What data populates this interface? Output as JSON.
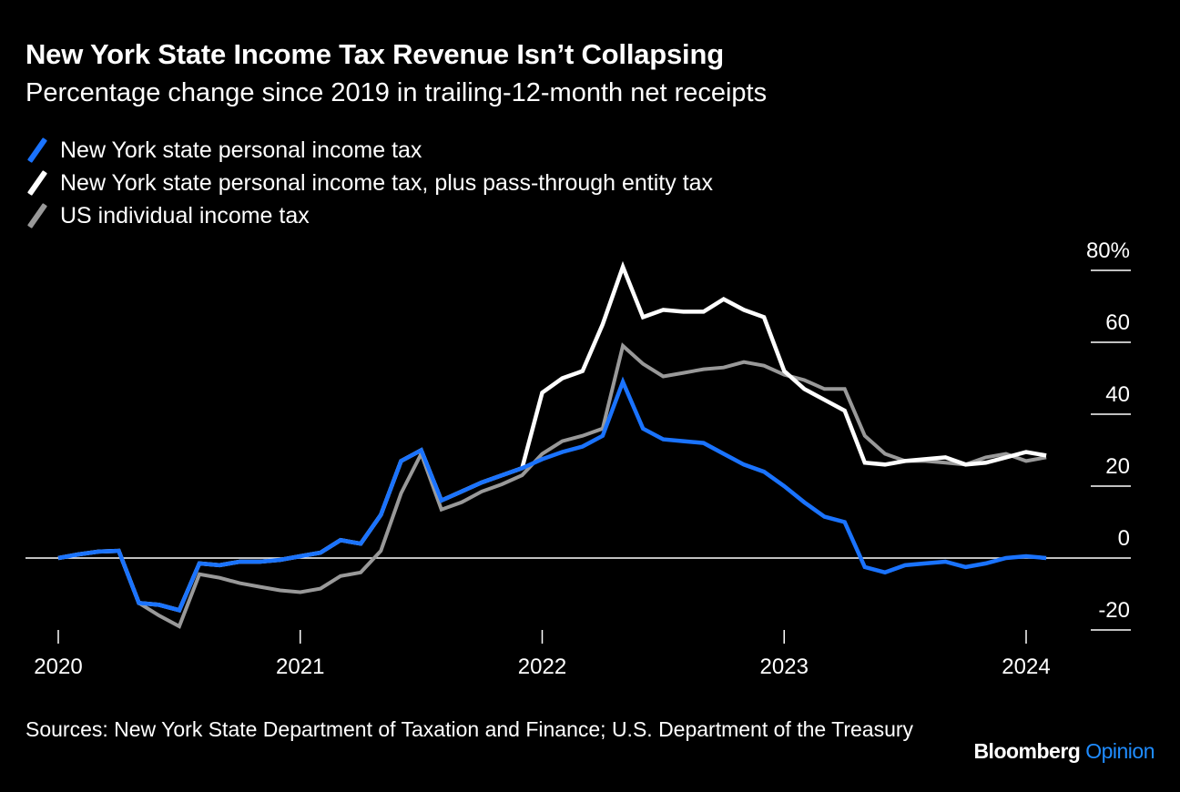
{
  "title": "New York State Income Tax Revenue Isn’t Collapsing",
  "subtitle": "Percentage change since 2019 in trailing-12-month net receipts",
  "sources": "Sources: New York State Department of Taxation and Finance; U.S. Department of the Treasury",
  "brand": {
    "main": "Bloomberg",
    "sub": "Opinion"
  },
  "chart_data": {
    "type": "line",
    "x_start": "2020-01",
    "x_interval": "monthly",
    "xlim": [
      "2019-11",
      "2024-06"
    ],
    "ylim": [
      -20,
      80
    ],
    "y_ticks": [
      "80%",
      "60",
      "40",
      "20",
      "0",
      "-20"
    ],
    "y_tick_values": [
      80,
      60,
      40,
      20,
      0,
      -20
    ],
    "x_ticks": [
      "2020",
      "2021",
      "2022",
      "2023",
      "2024"
    ],
    "zero_line": true,
    "legend_position": "top-left",
    "series": [
      {
        "name": "New York state personal income tax",
        "color": "#1a73ff",
        "values": [
          0,
          1,
          1.8,
          2,
          -12.5,
          -13,
          -14.5,
          -1.5,
          -2,
          -1,
          -1,
          -0.5,
          0.5,
          1.5,
          5,
          4,
          12,
          27,
          30,
          16,
          18.5,
          21,
          23,
          25,
          27.5,
          29.5,
          31,
          34,
          49,
          36,
          33,
          32.5,
          32,
          29,
          26,
          24,
          20,
          15.5,
          11.5,
          10,
          -2.5,
          -4,
          -2,
          -1.5,
          -1,
          -2.5,
          -1.5,
          0,
          0.5,
          0
        ]
      },
      {
        "name": "New York state personal income tax, plus pass-through entity tax",
        "color": "#ffffff",
        "values": [
          0,
          1,
          1.8,
          2,
          -12.5,
          -13,
          -14.5,
          -1.5,
          -2,
          -1,
          -1,
          -0.5,
          0.5,
          1.5,
          5,
          4,
          12,
          27,
          30,
          16,
          18.5,
          21,
          23,
          25,
          46,
          50,
          52,
          65,
          81,
          67,
          69,
          68.5,
          68.5,
          72,
          69,
          67,
          52,
          47,
          44,
          41,
          26.5,
          26,
          27,
          27.5,
          28,
          26,
          26.5,
          28,
          29.5,
          28.5
        ]
      },
      {
        "name": "US individual income tax",
        "color": "#999999",
        "values": [
          0,
          1,
          1.8,
          2,
          -12.5,
          -16,
          -19,
          -4.5,
          -5.5,
          -7,
          -8,
          -9,
          -9.5,
          -8.5,
          -5,
          -4,
          2,
          18,
          29,
          13.5,
          15.5,
          18.5,
          20.5,
          23,
          29,
          32.5,
          34,
          36,
          59,
          54,
          50.5,
          51.5,
          52.5,
          53,
          54.5,
          53.5,
          51,
          49.5,
          47,
          47,
          34,
          29,
          27,
          27,
          26.5,
          26,
          28,
          29,
          27,
          28
        ]
      }
    ]
  }
}
